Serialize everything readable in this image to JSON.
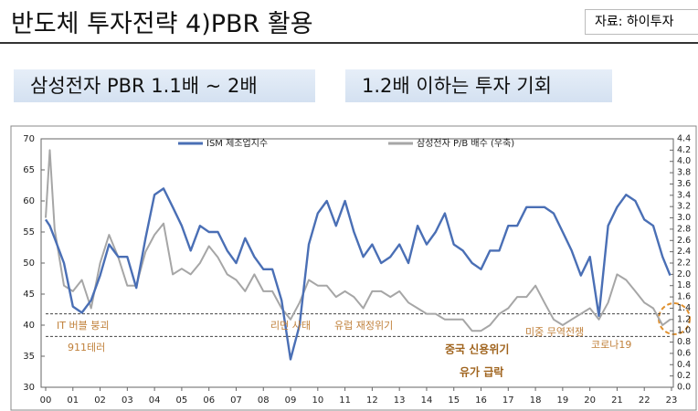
{
  "header": {
    "title": "반도체 투자전략 4)PBR 활용",
    "source": "자료: 하이투자"
  },
  "callouts": [
    "삼성전자 PBR 1.1배 ~ 2배",
    "1.2배 이하는 투자 기회"
  ],
  "chart_data": {
    "type": "line",
    "x": [
      2000.0,
      2000.15,
      2000.33,
      2000.67,
      2001.0,
      2001.33,
      2001.67,
      2002.0,
      2002.33,
      2002.67,
      2003.0,
      2003.33,
      2003.67,
      2004.0,
      2004.33,
      2004.67,
      2005.0,
      2005.33,
      2005.67,
      2006.0,
      2006.33,
      2006.67,
      2007.0,
      2007.33,
      2007.67,
      2008.0,
      2008.33,
      2008.67,
      2009.0,
      2009.33,
      2009.67,
      2010.0,
      2010.33,
      2010.67,
      2011.0,
      2011.33,
      2011.67,
      2012.0,
      2012.33,
      2012.67,
      2013.0,
      2013.33,
      2013.67,
      2014.0,
      2014.33,
      2014.67,
      2015.0,
      2015.33,
      2015.67,
      2016.0,
      2016.33,
      2016.67,
      2017.0,
      2017.33,
      2017.67,
      2018.0,
      2018.33,
      2018.67,
      2019.0,
      2019.33,
      2019.67,
      2020.0,
      2020.33,
      2020.67,
      2021.0,
      2021.33,
      2021.67,
      2022.0,
      2022.33,
      2022.67,
      2022.95
    ],
    "series": [
      {
        "name": "ISM 제조업지수",
        "color": "#4a6fb5",
        "values": [
          57,
          56,
          54,
          50,
          43,
          42,
          44,
          48,
          53,
          51,
          51,
          46,
          54,
          61,
          62,
          59,
          56,
          52,
          56,
          55,
          55,
          52,
          50,
          54,
          51,
          49,
          49,
          44,
          34.5,
          40,
          53,
          58,
          60,
          56,
          60,
          55,
          51,
          53,
          50,
          51,
          53,
          50,
          56,
          53,
          55,
          58,
          53,
          52,
          50,
          49,
          52,
          52,
          56,
          56,
          59,
          59,
          59,
          58,
          55,
          52,
          48,
          51,
          41.5,
          56,
          59,
          61,
          60,
          57,
          56,
          51,
          48
        ]
      },
      {
        "name": "삼성전자 P/B 배수 (우축)",
        "color": "#a6a6a6",
        "axis": "y2",
        "values": [
          3.0,
          4.2,
          2.8,
          1.8,
          1.7,
          1.9,
          1.4,
          2.2,
          2.7,
          2.3,
          1.8,
          1.8,
          2.4,
          2.7,
          2.9,
          2.0,
          2.1,
          2.0,
          2.2,
          2.5,
          2.3,
          2.0,
          1.9,
          1.7,
          2.0,
          1.7,
          1.7,
          1.4,
          1.2,
          1.5,
          1.9,
          1.8,
          1.8,
          1.6,
          1.7,
          1.6,
          1.4,
          1.7,
          1.7,
          1.6,
          1.7,
          1.5,
          1.4,
          1.3,
          1.3,
          1.2,
          1.2,
          1.2,
          1.0,
          1.0,
          1.1,
          1.3,
          1.4,
          1.6,
          1.6,
          1.8,
          1.5,
          1.2,
          1.1,
          1.2,
          1.3,
          1.4,
          1.2,
          1.5,
          2.0,
          1.9,
          1.7,
          1.5,
          1.4,
          1.1,
          1.2
        ]
      }
    ],
    "xlim": [
      2000,
      2023
    ],
    "xticks": [
      {
        "value": 2000,
        "label": "00"
      },
      {
        "value": 2001,
        "label": "01"
      },
      {
        "value": 2002,
        "label": "02"
      },
      {
        "value": 2003,
        "label": "03"
      },
      {
        "value": 2004,
        "label": "04"
      },
      {
        "value": 2005,
        "label": "05"
      },
      {
        "value": 2006,
        "label": "06"
      },
      {
        "value": 2007,
        "label": "07"
      },
      {
        "value": 2008,
        "label": "08"
      },
      {
        "value": 2009,
        "label": "09"
      },
      {
        "value": 2010,
        "label": "10"
      },
      {
        "value": 2011,
        "label": "11"
      },
      {
        "value": 2012,
        "label": "12"
      },
      {
        "value": 2013,
        "label": "13"
      },
      {
        "value": 2014,
        "label": "14"
      },
      {
        "value": 2015,
        "label": "15"
      },
      {
        "value": 2016,
        "label": "16"
      },
      {
        "value": 2017,
        "label": "17"
      },
      {
        "value": 2018,
        "label": "18"
      },
      {
        "value": 2019,
        "label": "19"
      },
      {
        "value": 2020,
        "label": "20"
      },
      {
        "value": 2021,
        "label": "21"
      },
      {
        "value": 2022,
        "label": "22"
      },
      {
        "value": 2023,
        "label": "23"
      }
    ],
    "ylim": [
      30,
      70
    ],
    "yticks": [
      30,
      35,
      40,
      45,
      50,
      55,
      60,
      65,
      70
    ],
    "y2lim": [
      0,
      4.4
    ],
    "y2ticks": [
      {
        "value": 0,
        "label": "0.0"
      },
      0.2,
      0.4,
      0.6,
      0.8,
      {
        "value": 1,
        "label": "1.0"
      },
      1.2,
      1.4,
      1.6,
      1.8,
      {
        "value": 2,
        "label": "2.0"
      },
      2.2,
      2.4,
      2.6,
      2.8,
      {
        "value": 3,
        "label": "3.0"
      },
      3.2,
      3.4,
      3.6,
      3.8,
      {
        "value": 4,
        "label": "4.0"
      },
      4.2,
      4.4
    ],
    "reference_lines": [
      1.3,
      0.9
    ],
    "annotations": [
      "IT 버블 붕괴",
      "911테러",
      "리먼 사태",
      "유럽 재정위기",
      "중국 신용위기",
      "유가 급락",
      "미중 무역전쟁",
      "코로나19"
    ]
  }
}
